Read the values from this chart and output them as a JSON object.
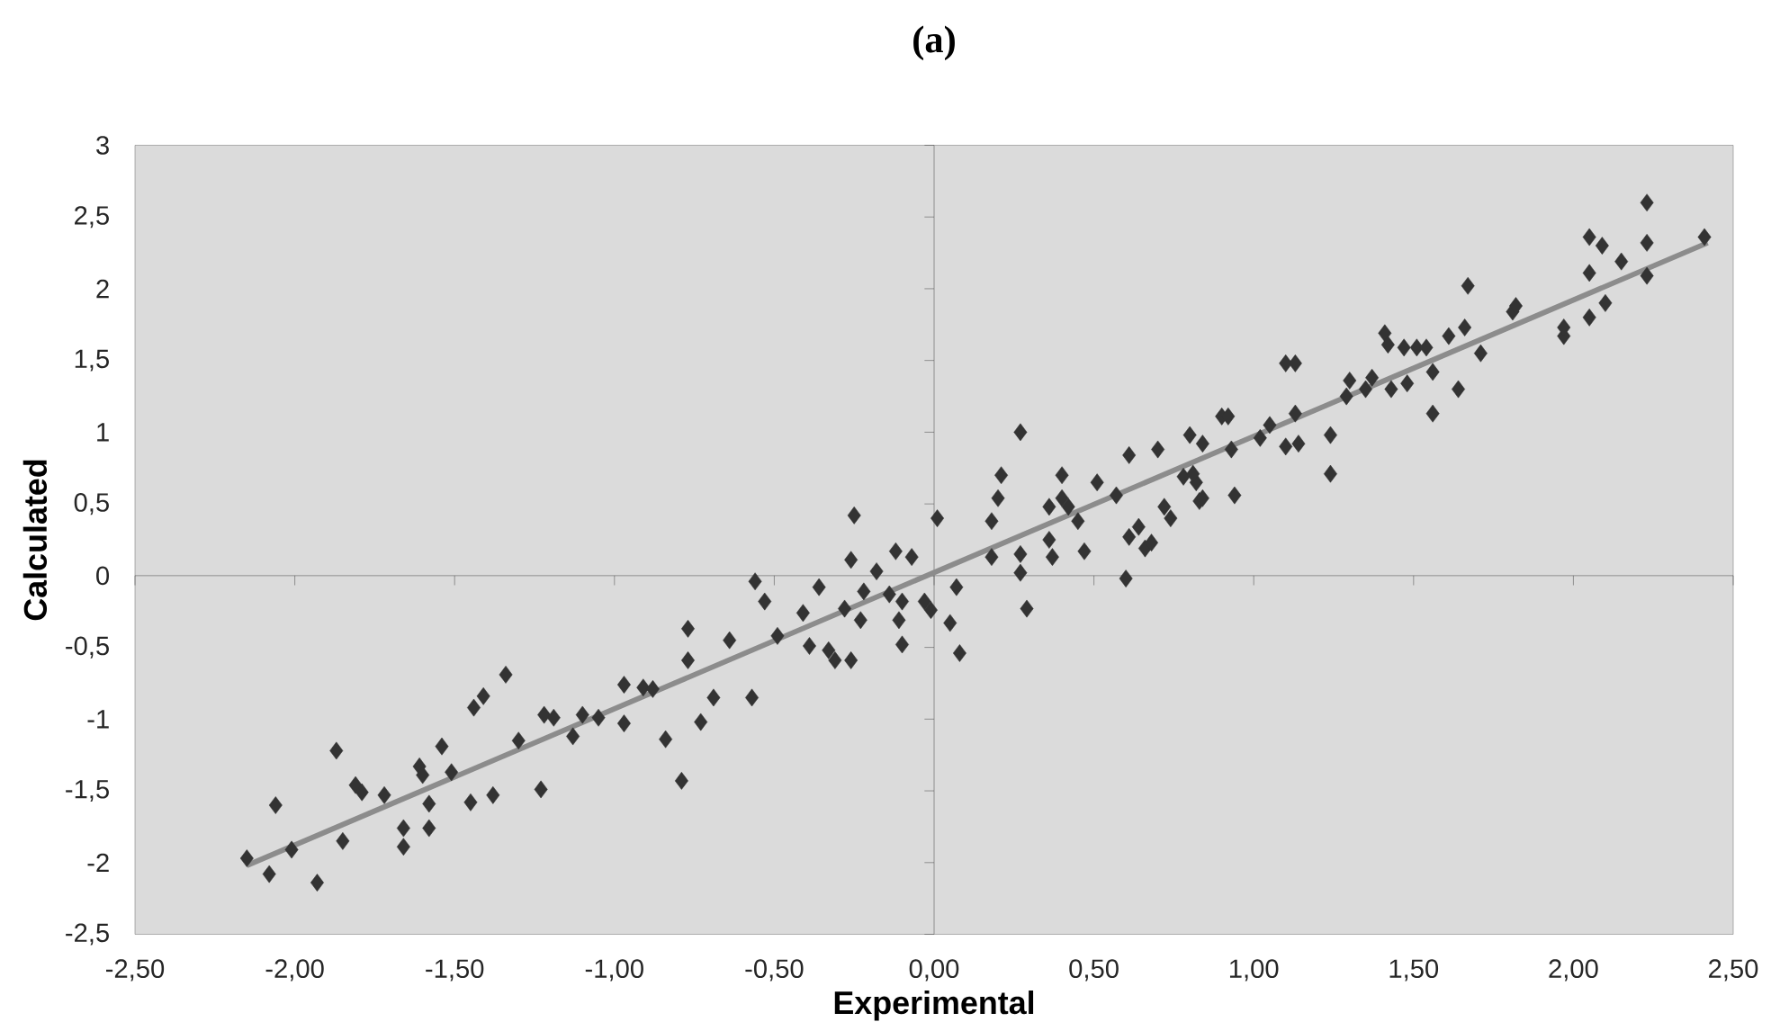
{
  "chart_data": {
    "type": "scatter",
    "title": "(a)",
    "xlabel": "Experimental",
    "ylabel": "Calculated",
    "xlim": [
      -2.5,
      2.5
    ],
    "ylim": [
      -2.5,
      3
    ],
    "xticks": [
      {
        "value": -2.5,
        "label": "-2,50"
      },
      {
        "value": -2,
        "label": "-2,00"
      },
      {
        "value": -1.5,
        "label": "-1,50"
      },
      {
        "value": -1,
        "label": "-1,00"
      },
      {
        "value": -0.5,
        "label": "-0,50"
      },
      {
        "value": 0,
        "label": "0,00"
      },
      {
        "value": 0.5,
        "label": "0,50"
      },
      {
        "value": 1,
        "label": "1,00"
      },
      {
        "value": 1.5,
        "label": "1,50"
      },
      {
        "value": 2,
        "label": "2,00"
      },
      {
        "value": 2.5,
        "label": "2,50"
      }
    ],
    "yticks": [
      -2,
      {
        "value": -2.5,
        "label": "-2,5"
      },
      {
        "value": -1.5,
        "label": "-1,5"
      },
      -1,
      {
        "value": -0.5,
        "label": "-0,5"
      },
      0,
      {
        "value": 0.5,
        "label": "0,5"
      },
      1,
      {
        "value": 1.5,
        "label": "1,5"
      },
      2,
      {
        "value": 2.5,
        "label": "2,5"
      },
      3
    ],
    "series": [
      {
        "marker": "diamond",
        "color": "#333333",
        "x": [
          -2.15,
          -2.08,
          -2.06,
          -2.01,
          -1.93,
          -1.87,
          -1.85,
          -1.81,
          -1.79,
          -1.72,
          -1.66,
          -1.66,
          -1.61,
          -1.6,
          -1.58,
          -1.58,
          -1.54,
          -1.51,
          -1.45,
          -1.44,
          -1.41,
          -1.38,
          -1.34,
          -1.3,
          -1.23,
          -1.22,
          -1.19,
          -1.13,
          -1.1,
          -1.05,
          -0.97,
          -0.97,
          -0.91,
          -0.88,
          -0.84,
          -0.79,
          -0.77,
          -0.77,
          -0.73,
          -0.69,
          -0.64,
          -0.57,
          -0.56,
          -0.53,
          -0.49,
          -0.41,
          -0.39,
          -0.36,
          -0.33,
          -0.31,
          -0.28,
          -0.26,
          -0.26,
          -0.25,
          -0.23,
          -0.22,
          -0.18,
          -0.14,
          -0.12,
          -0.11,
          -0.1,
          -0.1,
          -0.07,
          -0.03,
          -0.01,
          0.01,
          0.05,
          0.07,
          0.08,
          0.18,
          0.18,
          0.2,
          0.21,
          0.27,
          0.27,
          0.27,
          0.29,
          0.36,
          0.36,
          0.37,
          0.4,
          0.4,
          0.42,
          0.45,
          0.47,
          0.51,
          0.57,
          0.6,
          0.61,
          0.61,
          0.64,
          0.66,
          0.68,
          0.7,
          0.72,
          0.74,
          0.78,
          0.8,
          0.82,
          0.83,
          0.84,
          0.9,
          0.81,
          0.84,
          0.92,
          0.93,
          0.94,
          1.02,
          1.05,
          1.1,
          1.1,
          1.13,
          1.14,
          1.13,
          1.24,
          1.24,
          1.29,
          1.3,
          1.35,
          1.37,
          1.41,
          1.42,
          1.43,
          1.47,
          1.48,
          1.51,
          1.54,
          1.56,
          1.56,
          1.61,
          1.64,
          1.66,
          1.67,
          1.71,
          1.81,
          1.82,
          1.97,
          1.97,
          2.05,
          2.05,
          2.05,
          2.09,
          2.1,
          2.15,
          2.23,
          2.23,
          2.23,
          2.41
        ],
        "values": [
          -1.97,
          -2.08,
          -1.6,
          -1.91,
          -2.14,
          -1.22,
          -1.85,
          -1.46,
          -1.51,
          -1.53,
          -1.76,
          -1.89,
          -1.33,
          -1.39,
          -1.76,
          -1.59,
          -1.19,
          -1.37,
          -1.58,
          -0.92,
          -0.84,
          -1.53,
          -0.69,
          -1.15,
          -1.49,
          -0.97,
          -0.99,
          -1.12,
          -0.97,
          -0.99,
          -0.76,
          -1.03,
          -0.78,
          -0.79,
          -1.14,
          -1.43,
          -0.37,
          -0.59,
          -1.02,
          -0.85,
          -0.45,
          -0.85,
          -0.04,
          -0.18,
          -0.42,
          -0.26,
          -0.49,
          -0.08,
          -0.52,
          -0.59,
          -0.23,
          -0.59,
          0.11,
          0.42,
          -0.31,
          -0.11,
          0.03,
          -0.13,
          0.17,
          -0.31,
          -0.48,
          -0.18,
          0.13,
          -0.18,
          -0.24,
          0.4,
          -0.33,
          -0.08,
          -0.54,
          0.13,
          0.38,
          0.54,
          0.7,
          1.0,
          0.15,
          0.02,
          -0.23,
          0.48,
          0.25,
          0.13,
          0.7,
          0.54,
          0.48,
          0.38,
          0.17,
          0.65,
          0.56,
          -0.02,
          0.84,
          0.27,
          0.34,
          0.19,
          0.23,
          0.88,
          0.48,
          0.4,
          0.69,
          0.98,
          0.65,
          0.52,
          0.92,
          1.11,
          0.71,
          0.54,
          1.11,
          0.88,
          0.56,
          0.96,
          1.05,
          0.9,
          1.48,
          1.48,
          0.92,
          1.13,
          0.98,
          0.71,
          1.25,
          1.36,
          1.3,
          1.38,
          1.69,
          1.61,
          1.3,
          1.59,
          1.34,
          1.59,
          1.59,
          1.42,
          1.13,
          1.67,
          1.3,
          1.73,
          2.02,
          1.55,
          1.84,
          1.88,
          1.67,
          1.73,
          1.8,
          2.11,
          2.36,
          2.3,
          1.9,
          2.19,
          2.6,
          2.32,
          2.09,
          2.36
        ]
      },
      {
        "type": "line",
        "color": "#8c8c8c",
        "x": [
          -2.15,
          2.42
        ],
        "values": [
          -2.02,
          2.32
        ]
      }
    ]
  }
}
